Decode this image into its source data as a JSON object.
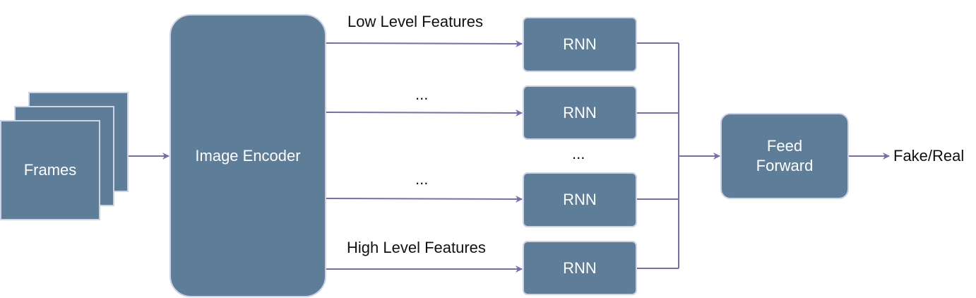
{
  "diagram": {
    "frames_label": "Frames",
    "encoder_label": "Image Encoder",
    "rnn_labels": [
      "RNN",
      "RNN",
      "RNN",
      "RNN"
    ],
    "feed_forward_label": "Feed\nForward",
    "output_label": "Fake/Real",
    "edge_labels": {
      "low": "Low Level Features",
      "mid1": "...",
      "mid2": "...",
      "high": "High Level Features",
      "between_rnn": "..."
    },
    "colors": {
      "box_fill": "#5d7d98",
      "box_border": "#cdd3e6",
      "arrow": "#7b6dab"
    }
  }
}
